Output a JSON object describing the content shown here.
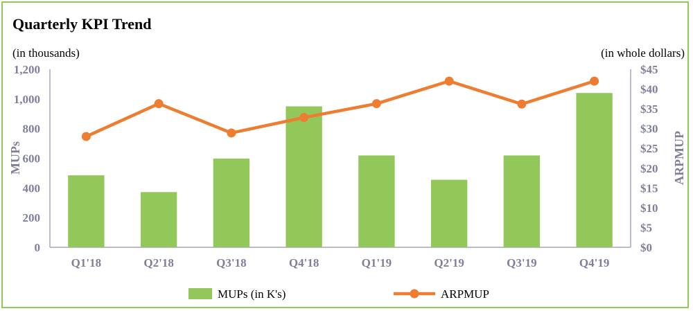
{
  "chart_data": {
    "type": "bar",
    "title": "Quarterly KPI Trend",
    "left_unit_note": "(in thousands)",
    "right_unit_note": "(in whole dollars)",
    "ylabel": "MUPs",
    "y2label": "ARPMUP",
    "categories": [
      "Q1'18",
      "Q2'18",
      "Q3'18",
      "Q4'18",
      "Q1'19",
      "Q2'19",
      "Q3'19",
      "Q4'19"
    ],
    "ylim": [
      0,
      1200
    ],
    "y_ticks": [
      "0",
      "200",
      "400",
      "600",
      "800",
      "1,000",
      "1,200"
    ],
    "y2lim": [
      0,
      45
    ],
    "y2_ticks": [
      "$0",
      "$5",
      "$10",
      "$15",
      "$20",
      "$25",
      "$30",
      "$35",
      "$40",
      "$45"
    ],
    "grid": false,
    "legend_position": "bottom",
    "series": [
      {
        "name": "MUPs (in K's)",
        "type": "bar",
        "axis": "left",
        "color": "#92C85A",
        "values": [
          485,
          372,
          598,
          950,
          619,
          455,
          619,
          1040
        ]
      },
      {
        "name": "ARPMUP",
        "type": "line",
        "axis": "right",
        "color": "#ED7D31",
        "values": [
          28,
          36.3,
          28.9,
          32.8,
          36.3,
          42,
          36.2,
          42
        ]
      }
    ],
    "text_color": "#7F7F99",
    "title_color": "#000000"
  }
}
